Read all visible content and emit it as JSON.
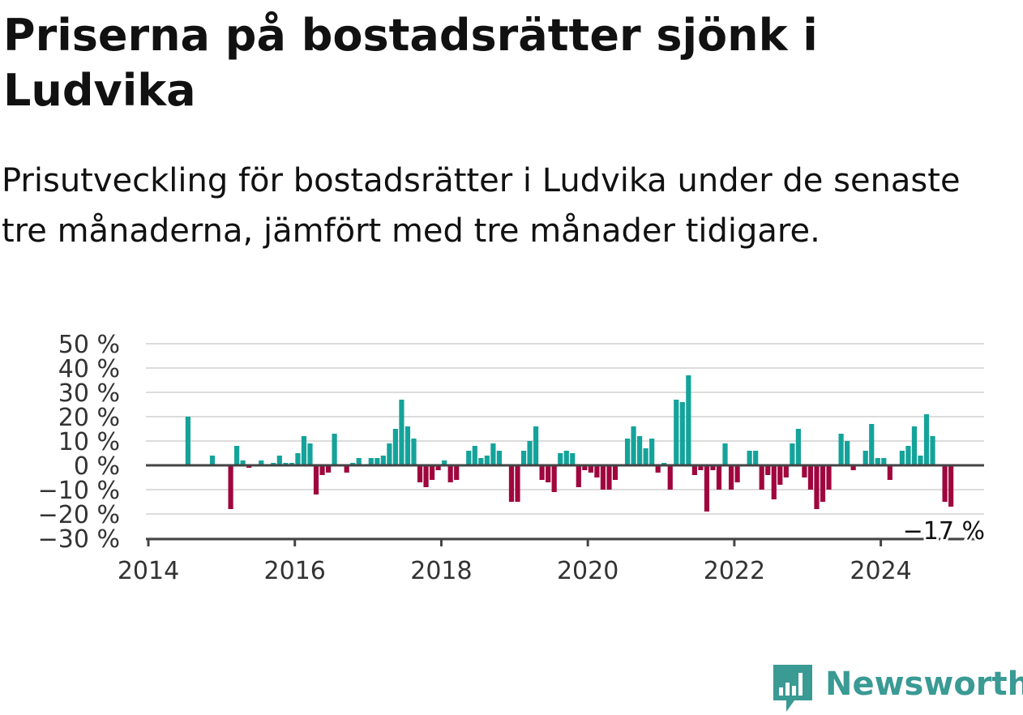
{
  "title": "Priserna på bostadsrätter sjönk i Ludvika",
  "subtitle": "Prisutveckling för bostadsrätter i Ludvika under de senaste tre månaderna, jämfört med tre månader tidigare.",
  "brand": {
    "name": "Newsworthy",
    "color": "#3a9a94",
    "icon": "newsworthy-logo-icon"
  },
  "colors": {
    "positive": "#14a39a",
    "negative": "#a0063e",
    "grid": "#dcdcdc",
    "axis": "#444444"
  },
  "chart_data": {
    "type": "bar",
    "x_start": "2014-01",
    "x_step": "month",
    "xticks": [
      "2014",
      "2016",
      "2018",
      "2020",
      "2022",
      "2024"
    ],
    "yticks": [
      "50 %",
      "40 %",
      "30 %",
      "20 %",
      "10 %",
      "0 %",
      "−10 %",
      "−20 %",
      "−30 %"
    ],
    "ylim": [
      -30,
      50
    ],
    "grid": true,
    "last_value_label": "−17 %",
    "values": [
      null,
      null,
      null,
      null,
      null,
      null,
      20,
      0,
      0,
      0,
      4,
      0,
      0,
      -18,
      8,
      2,
      -1,
      0,
      2,
      0,
      1,
      4,
      1,
      1,
      5,
      12,
      9,
      -12,
      -4,
      -3,
      13,
      0,
      -3,
      1,
      3,
      0,
      3,
      3,
      4,
      9,
      15,
      27,
      16,
      11,
      -7,
      -9,
      -6,
      -2,
      2,
      -7,
      -6,
      0,
      6,
      8,
      3,
      4,
      9,
      6,
      0,
      -15,
      -15,
      6,
      10,
      16,
      -6,
      -7,
      -11,
      5,
      6,
      5,
      -9,
      -2,
      -3,
      -5,
      -10,
      -10,
      -6,
      0,
      11,
      16,
      12,
      7,
      11,
      -3,
      1,
      -10,
      27,
      26,
      37,
      -4,
      -2,
      -19,
      -2,
      -10,
      9,
      -10,
      -7,
      0,
      6,
      6,
      -10,
      -4,
      -14,
      -8,
      -5,
      9,
      15,
      -5,
      -10,
      -18,
      -15,
      -10,
      0,
      13,
      10,
      -2,
      0,
      6,
      17,
      3,
      3,
      -6,
      0,
      6,
      8,
      16,
      4,
      21,
      12,
      0,
      -15,
      -17
    ]
  }
}
